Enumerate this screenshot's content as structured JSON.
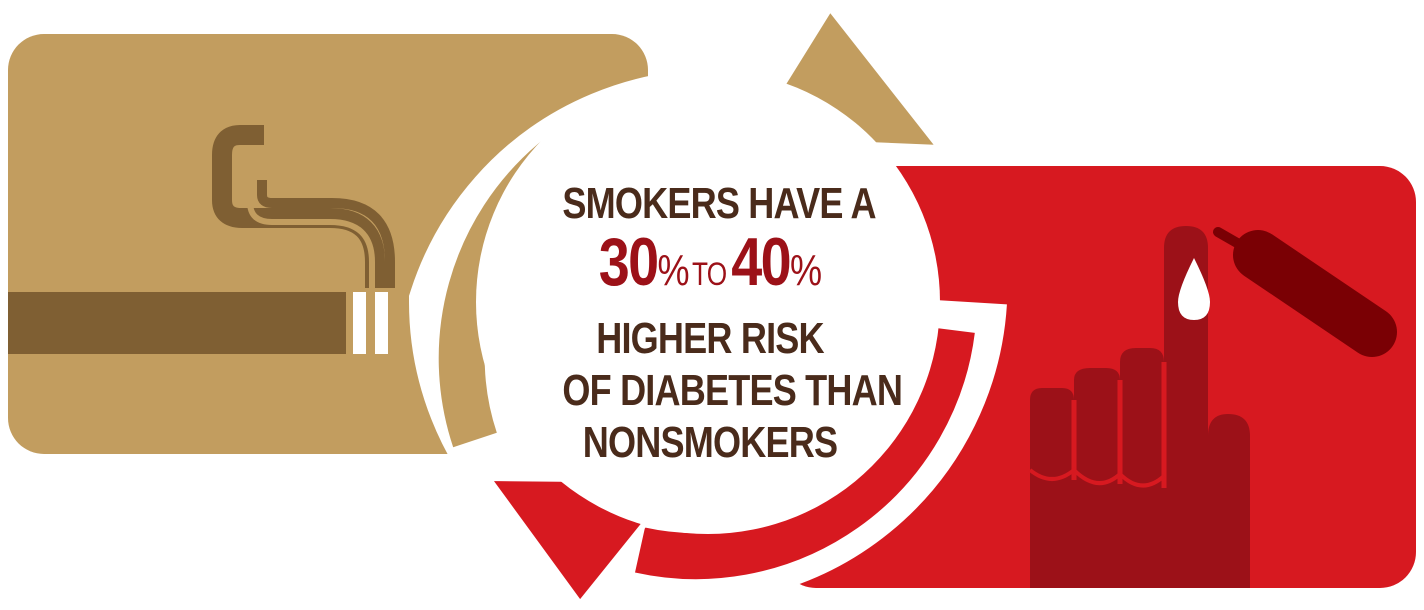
{
  "headline": {
    "line1": "SMOKERS HAVE A",
    "low_value": "30",
    "low_unit": "%",
    "connector": "TO",
    "high_value": "40",
    "high_unit": "%",
    "line3": "HIGHER RISK",
    "line4": "OF DIABETES THAN",
    "line5": "NONSMOKERS"
  },
  "colors": {
    "tan": "#c29d5f",
    "brown": "#7f5f33",
    "red": "#d71920",
    "dark_red": "#9c1118",
    "maroon": "#7a0004",
    "text_dark": "#4a2b1b"
  },
  "icons": {
    "left": "cigarette-icon",
    "right": "finger-blood-drop-icon",
    "cycle": "circular-arrows-icon"
  }
}
